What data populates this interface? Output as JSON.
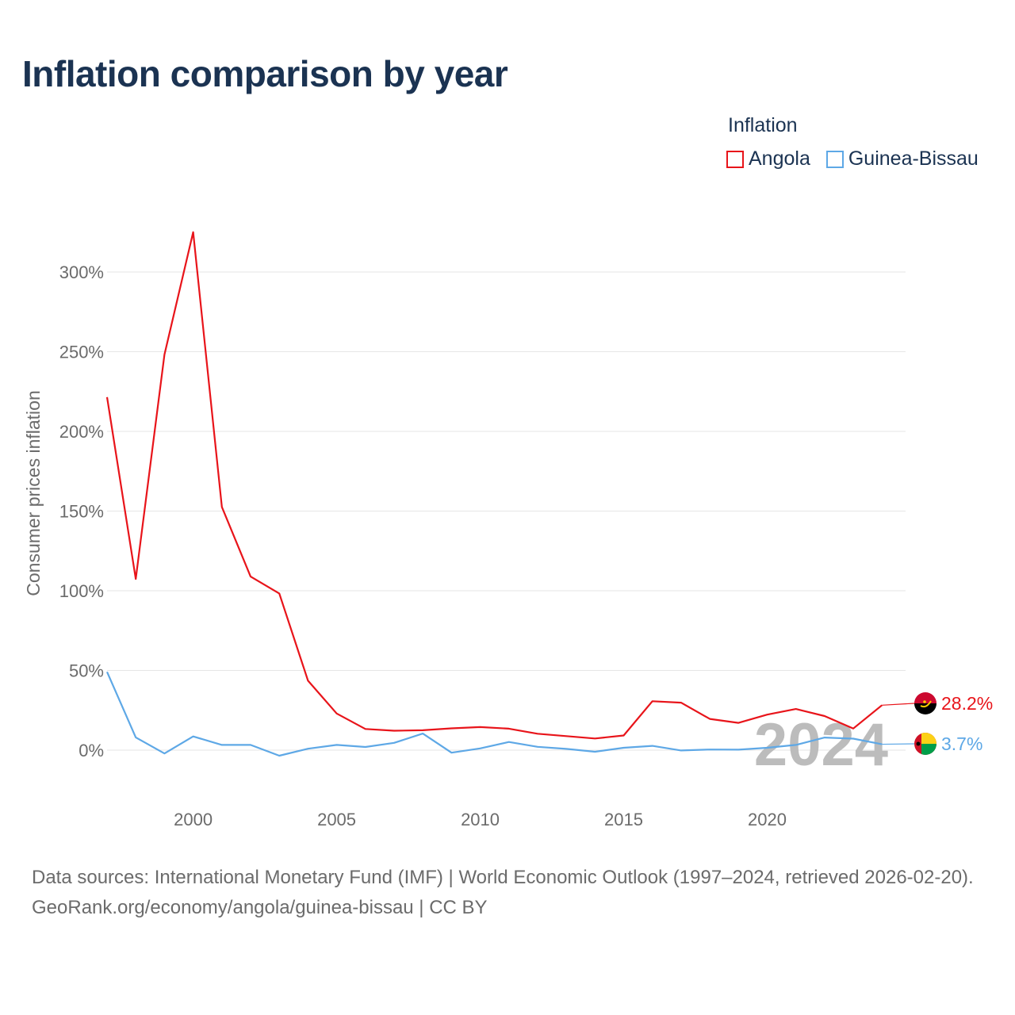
{
  "page": {
    "title": "Inflation comparison by year",
    "footer_sources": "Data sources: International Monetary Fund (IMF) | World Economic Outlook (1997–2024, retrieved 2026-02-20).",
    "footer_link": "GeoRank.org/economy/angola/guinea-bissau | CC BY",
    "watermark_year": "2024"
  },
  "legend": {
    "title": "Inflation",
    "items": [
      {
        "name": "Angola",
        "color": "#e8141a"
      },
      {
        "name": "Guinea-Bissau",
        "color": "#5ea8e6"
      }
    ]
  },
  "chart_data": {
    "type": "line",
    "title": "Inflation comparison by year",
    "xlabel": "",
    "ylabel": "Consumer prices inflation",
    "xlim": [
      1997,
      2024
    ],
    "ylim": [
      -15,
      335
    ],
    "x_ticks": [
      2000,
      2005,
      2010,
      2015,
      2020
    ],
    "y_ticks": [
      0,
      50,
      100,
      150,
      200,
      250,
      300
    ],
    "y_tick_labels": [
      "0%",
      "50%",
      "100%",
      "150%",
      "200%",
      "250%",
      "300%"
    ],
    "x": [
      1997,
      1998,
      1999,
      2000,
      2001,
      2002,
      2003,
      2004,
      2005,
      2006,
      2007,
      2008,
      2009,
      2010,
      2011,
      2012,
      2013,
      2014,
      2015,
      2016,
      2017,
      2018,
      2019,
      2020,
      2021,
      2022,
      2023,
      2024
    ],
    "series": [
      {
        "name": "Angola",
        "color": "#e8141a",
        "values": [
          221.5,
          107.4,
          248.2,
          325.0,
          152.6,
          108.9,
          98.3,
          43.6,
          23.0,
          13.3,
          12.2,
          12.5,
          13.7,
          14.5,
          13.5,
          10.3,
          8.8,
          7.3,
          9.2,
          30.7,
          29.8,
          19.6,
          17.1,
          22.3,
          25.8,
          21.4,
          13.6,
          28.2
        ],
        "end_label": "28.2%"
      },
      {
        "name": "Guinea-Bissau",
        "color": "#5ea8e6",
        "values": [
          49.1,
          8.0,
          -2.1,
          8.6,
          3.3,
          3.3,
          -3.5,
          0.9,
          3.3,
          2.0,
          4.6,
          10.4,
          -1.6,
          1.1,
          5.1,
          2.1,
          0.8,
          -1.0,
          1.5,
          2.7,
          -0.2,
          0.4,
          0.3,
          1.5,
          3.3,
          7.9,
          7.2,
          3.7
        ],
        "end_label": "3.7%"
      }
    ]
  }
}
